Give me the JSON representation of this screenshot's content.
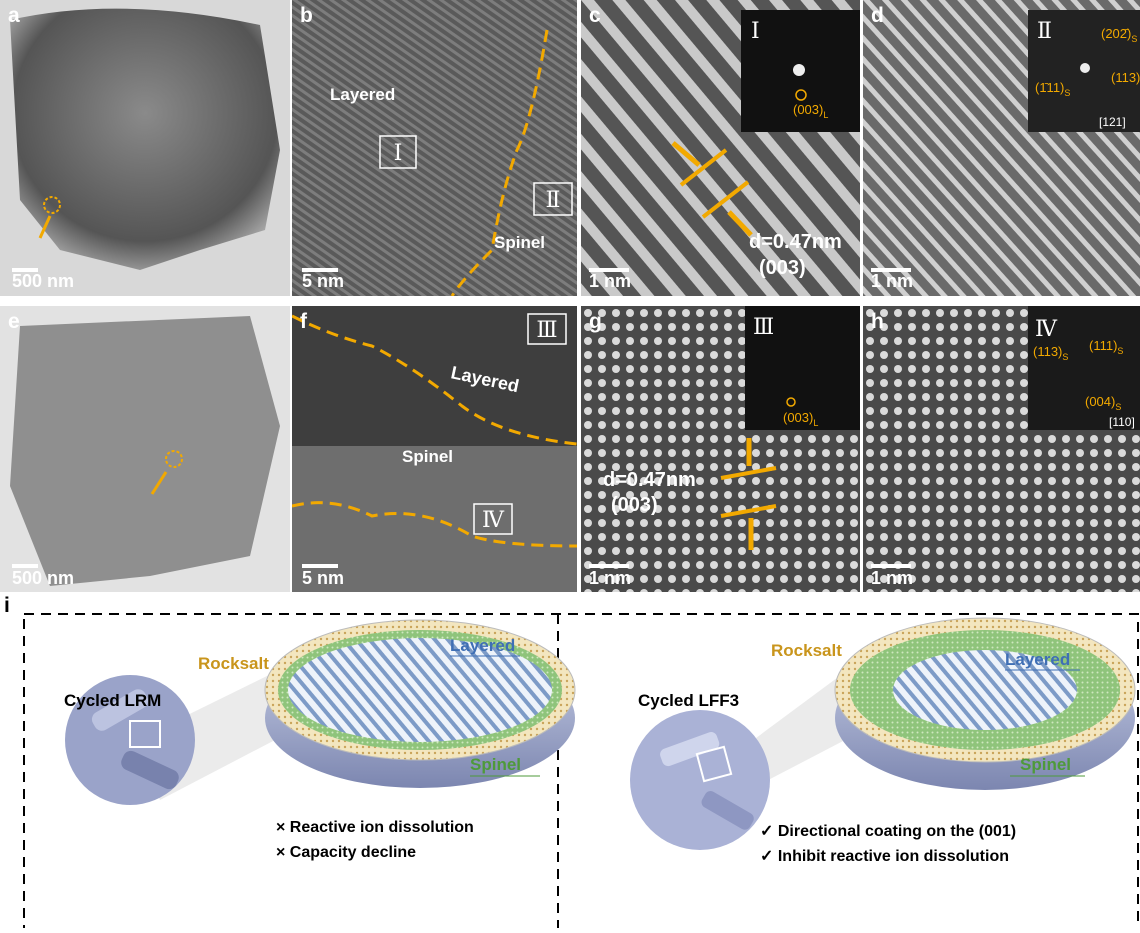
{
  "panels": {
    "a": {
      "label": "a",
      "scale_bar": "500 nm"
    },
    "b": {
      "label": "b",
      "phase_top": "Layered",
      "region_1": "Ⅰ",
      "region_2": "Ⅱ",
      "phase_bottom": "Spinel",
      "scale_bar": "5 nm"
    },
    "c": {
      "label": "c",
      "inset_region": "Ⅰ",
      "fft_spot": {
        "index": "(003)",
        "sub": "L"
      },
      "spacing": "d=0.47nm",
      "plane": "(003)",
      "scale_bar": "1 nm"
    },
    "d": {
      "label": "d",
      "inset_region": "Ⅱ",
      "fft_spots": [
        {
          "index": "(202̄)",
          "sub": "S"
        },
        {
          "index": "(113)"
        },
        {
          "index": "(1̄11)",
          "sub": "S"
        }
      ],
      "zone_axis": "[121]",
      "scale_bar": "1 nm"
    },
    "e": {
      "label": "e",
      "scale_bar": "500 nm"
    },
    "f": {
      "label": "f",
      "region_1": "Ⅲ",
      "phase_top": "Layered",
      "phase_middle": "Spinel",
      "region_2": "Ⅳ",
      "scale_bar": "5 nm"
    },
    "g": {
      "label": "g",
      "inset_region": "Ⅲ",
      "fft_spot": {
        "index": "(003)",
        "sub": "L"
      },
      "spacing": "d=0.47nm",
      "plane": "(003)",
      "scale_bar": "1 nm"
    },
    "h": {
      "label": "h",
      "inset_region": "Ⅳ",
      "fft_spots": [
        {
          "index": "(113)",
          "sub": "S"
        },
        {
          "index": "(111)",
          "sub": "S"
        },
        {
          "index": "(004)",
          "sub": "S"
        }
      ],
      "zone_axis": "[110]",
      "scale_bar": "1 nm"
    },
    "i": {
      "label": "i",
      "left": {
        "particle": "Cycled LRM",
        "rocksalt": "Rocksalt",
        "layered": "Layered",
        "spinel": "Spinel",
        "notes": [
          "× Reactive ion dissolution",
          "× Capacity decline"
        ]
      },
      "right": {
        "particle": "Cycled LFF3",
        "rocksalt": "Rocksalt",
        "layered": "Layered",
        "spinel": "Spinel",
        "notes": [
          "✓   Directional coating on the (001)",
          "✓   Inhibit reactive ion dissolution"
        ]
      }
    }
  }
}
